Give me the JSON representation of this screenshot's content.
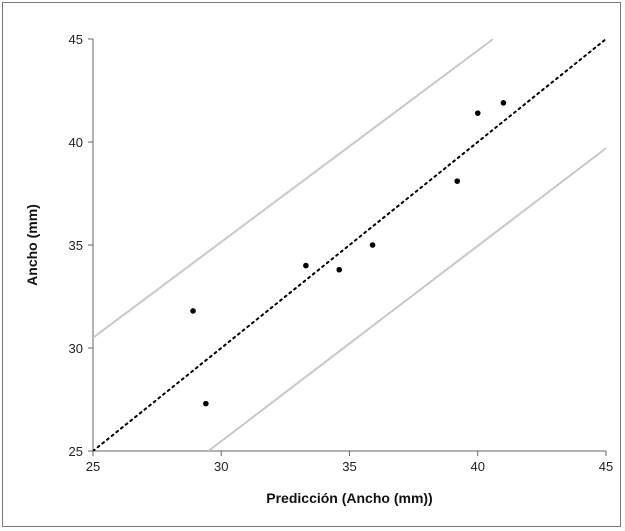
{
  "chart_data": {
    "type": "scatter",
    "xlabel": "Predicción (Ancho (mm))",
    "ylabel": "Ancho (mm)",
    "xlim": [
      25,
      45
    ],
    "ylim": [
      25,
      45
    ],
    "x_ticks": [
      "25",
      "30",
      "35",
      "40",
      "45"
    ],
    "y_ticks": [
      "25",
      "30",
      "35",
      "40",
      "45"
    ],
    "grid": false,
    "legend": "none",
    "points": [
      {
        "x": 28.9,
        "y": 31.8
      },
      {
        "x": 29.4,
        "y": 27.3
      },
      {
        "x": 33.3,
        "y": 34.0
      },
      {
        "x": 34.6,
        "y": 33.8
      },
      {
        "x": 35.9,
        "y": 35.0
      },
      {
        "x": 39.2,
        "y": 38.1
      },
      {
        "x": 40.0,
        "y": 41.4
      },
      {
        "x": 41.0,
        "y": 41.9
      }
    ],
    "reference_line": {
      "x": [
        25,
        45
      ],
      "y": [
        25,
        45
      ],
      "style": "dotted"
    },
    "upper_bound": {
      "x": [
        25,
        40.6
      ],
      "y": [
        30.5,
        45
      ]
    },
    "lower_bound": {
      "x": [
        29.5,
        45
      ],
      "y": [
        25,
        39.7
      ]
    },
    "colors": {
      "points": "#000000",
      "reference_line": "#000000",
      "bounds": "#c8c8c8",
      "axes": "#666666"
    }
  }
}
